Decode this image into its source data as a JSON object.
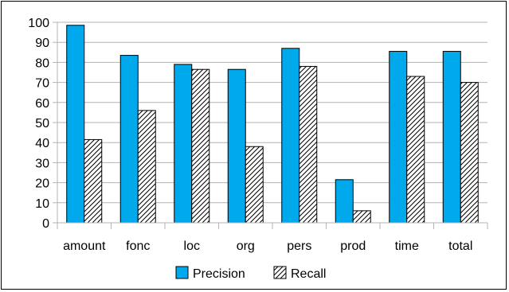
{
  "chart_data": {
    "type": "bar",
    "title": "",
    "xlabel": "",
    "ylabel": "",
    "categories": [
      "amount",
      "fonc",
      "loc",
      "org",
      "pers",
      "prod",
      "time",
      "total"
    ],
    "series": [
      {
        "name": "Precision",
        "values": [
          98.5,
          83.5,
          79,
          76.5,
          87,
          21.5,
          85.5,
          85.5
        ],
        "color": "#00a8ec",
        "pattern": "solid"
      },
      {
        "name": "Recall",
        "values": [
          41.5,
          56,
          76.5,
          38,
          78,
          6,
          73,
          70
        ],
        "color": "#ffffff",
        "pattern": "diagonal-hatch"
      }
    ],
    "ylim": [
      0,
      100
    ],
    "yticks": [
      0,
      10,
      20,
      30,
      40,
      50,
      60,
      70,
      80,
      90,
      100
    ],
    "grid": "horizontal",
    "legend": "bottom-center"
  }
}
